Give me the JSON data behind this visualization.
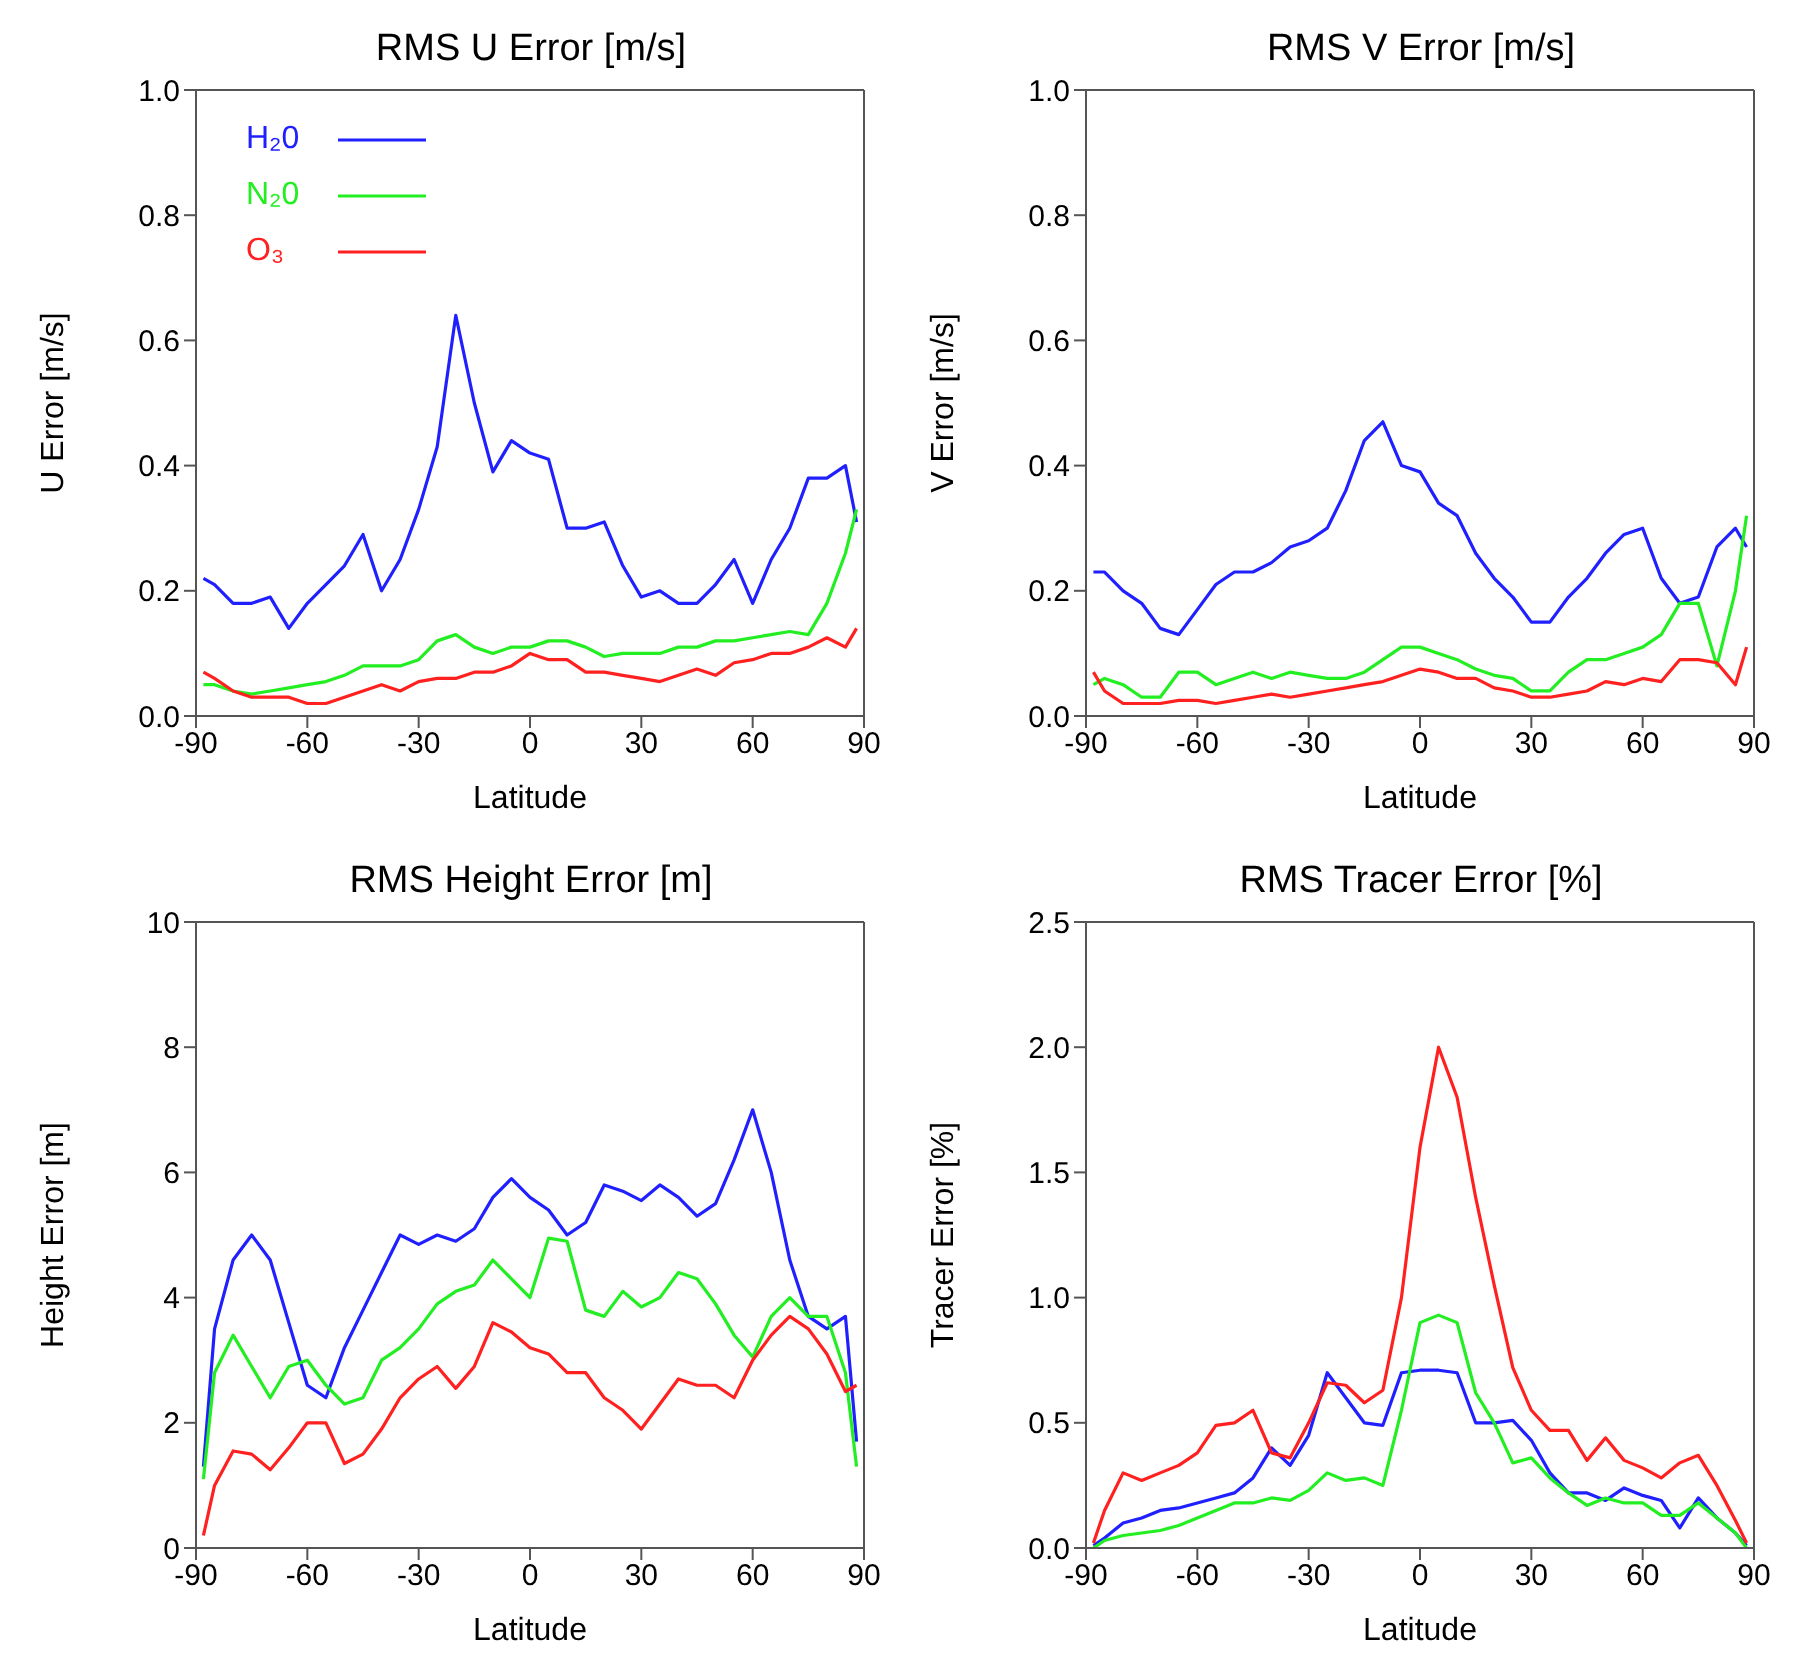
{
  "chart_data": [
    {
      "type": "line",
      "title": "RMS U Error [m/s]",
      "xlabel": "Latitude",
      "ylabel": "U Error [m/s]",
      "x": [
        -88,
        -85,
        -80,
        -75,
        -70,
        -65,
        -60,
        -55,
        -50,
        -45,
        -40,
        -35,
        -30,
        -25,
        -20,
        -15,
        -10,
        -5,
        0,
        5,
        10,
        15,
        20,
        25,
        30,
        35,
        40,
        45,
        50,
        55,
        60,
        65,
        70,
        75,
        80,
        85,
        88
      ],
      "xlim": [
        -90,
        90
      ],
      "xticks": [
        -90,
        -60,
        -30,
        0,
        30,
        60,
        90
      ],
      "ylim": [
        0,
        1
      ],
      "yticks": [
        {
          "value": 0,
          "label": "0.0"
        },
        0.2,
        0.4,
        0.6,
        0.8,
        {
          "value": 1,
          "label": "1.0"
        }
      ],
      "legend": "top left",
      "marker": "none",
      "line_style": "solid",
      "series": [
        {
          "name": "H₂0",
          "color": "#2020ff",
          "values": [
            0.22,
            0.21,
            0.18,
            0.18,
            0.19,
            0.14,
            0.18,
            0.21,
            0.24,
            0.29,
            0.2,
            0.25,
            0.33,
            0.43,
            0.64,
            0.5,
            0.39,
            0.44,
            0.42,
            0.41,
            0.3,
            0.3,
            0.31,
            0.24,
            0.19,
            0.2,
            0.18,
            0.18,
            0.21,
            0.25,
            0.18,
            0.25,
            0.3,
            0.38,
            0.38,
            0.4,
            0.31
          ]
        },
        {
          "name": "N₂0",
          "color": "#22ee22",
          "values": [
            0.05,
            0.05,
            0.04,
            0.035,
            0.04,
            0.045,
            0.05,
            0.055,
            0.065,
            0.08,
            0.08,
            0.08,
            0.09,
            0.12,
            0.13,
            0.11,
            0.1,
            0.11,
            0.11,
            0.12,
            0.12,
            0.11,
            0.095,
            0.1,
            0.1,
            0.1,
            0.11,
            0.11,
            0.12,
            0.12,
            0.125,
            0.13,
            0.135,
            0.13,
            0.18,
            0.26,
            0.33
          ]
        },
        {
          "name": "O₃",
          "color": "#ff2020",
          "values": [
            0.07,
            0.06,
            0.04,
            0.03,
            0.03,
            0.03,
            0.02,
            0.02,
            0.03,
            0.04,
            0.05,
            0.04,
            0.055,
            0.06,
            0.06,
            0.07,
            0.07,
            0.08,
            0.1,
            0.09,
            0.09,
            0.07,
            0.07,
            0.065,
            0.06,
            0.055,
            0.065,
            0.075,
            0.065,
            0.085,
            0.09,
            0.1,
            0.1,
            0.11,
            0.125,
            0.11,
            0.14
          ]
        }
      ]
    },
    {
      "type": "line",
      "title": "RMS V Error [m/s]",
      "xlabel": "Latitude",
      "ylabel": "V Error [m/s]",
      "x": [
        -88,
        -85,
        -80,
        -75,
        -70,
        -65,
        -60,
        -55,
        -50,
        -45,
        -40,
        -35,
        -30,
        -25,
        -20,
        -15,
        -10,
        -5,
        0,
        5,
        10,
        15,
        20,
        25,
        30,
        35,
        40,
        45,
        50,
        55,
        60,
        65,
        70,
        75,
        80,
        85,
        88
      ],
      "xlim": [
        -90,
        90
      ],
      "xticks": [
        -90,
        -60,
        -30,
        0,
        30,
        60,
        90
      ],
      "ylim": [
        0,
        1
      ],
      "yticks": [
        {
          "value": 0,
          "label": "0.0"
        },
        0.2,
        0.4,
        0.6,
        0.8,
        {
          "value": 1,
          "label": "1.0"
        }
      ],
      "marker": "none",
      "line_style": "solid",
      "series": [
        {
          "color": "#2020ff",
          "values": [
            0.23,
            0.23,
            0.2,
            0.18,
            0.14,
            0.13,
            0.17,
            0.21,
            0.23,
            0.23,
            0.245,
            0.27,
            0.28,
            0.3,
            0.36,
            0.44,
            0.47,
            0.4,
            0.39,
            0.34,
            0.32,
            0.26,
            0.22,
            0.19,
            0.15,
            0.15,
            0.19,
            0.22,
            0.26,
            0.29,
            0.3,
            0.22,
            0.18,
            0.19,
            0.27,
            0.3,
            0.27
          ]
        },
        {
          "color": "#22ee22",
          "values": [
            0.05,
            0.06,
            0.05,
            0.03,
            0.03,
            0.07,
            0.07,
            0.05,
            0.06,
            0.07,
            0.06,
            0.07,
            0.065,
            0.06,
            0.06,
            0.07,
            0.09,
            0.11,
            0.11,
            0.1,
            0.09,
            0.075,
            0.065,
            0.06,
            0.04,
            0.04,
            0.07,
            0.09,
            0.09,
            0.1,
            0.11,
            0.13,
            0.18,
            0.18,
            0.08,
            0.2,
            0.32
          ]
        },
        {
          "color": "#ff2020",
          "values": [
            0.07,
            0.04,
            0.02,
            0.02,
            0.02,
            0.025,
            0.025,
            0.02,
            0.025,
            0.03,
            0.035,
            0.03,
            0.035,
            0.04,
            0.045,
            0.05,
            0.055,
            0.065,
            0.075,
            0.07,
            0.06,
            0.06,
            0.045,
            0.04,
            0.03,
            0.03,
            0.035,
            0.04,
            0.055,
            0.05,
            0.06,
            0.055,
            0.09,
            0.09,
            0.085,
            0.05,
            0.11
          ]
        }
      ]
    },
    {
      "type": "line",
      "title": "RMS Height Error [m]",
      "xlabel": "Latitude",
      "ylabel": "Height Error [m]",
      "x": [
        -88,
        -85,
        -80,
        -75,
        -70,
        -65,
        -60,
        -55,
        -50,
        -45,
        -40,
        -35,
        -30,
        -25,
        -20,
        -15,
        -10,
        -5,
        0,
        5,
        10,
        15,
        20,
        25,
        30,
        35,
        40,
        45,
        50,
        55,
        60,
        65,
        70,
        75,
        80,
        85,
        88
      ],
      "xlim": [
        -90,
        90
      ],
      "xticks": [
        -90,
        -60,
        -30,
        0,
        30,
        60,
        90
      ],
      "ylim": [
        0,
        10
      ],
      "yticks": [
        0,
        2,
        4,
        6,
        8,
        10
      ],
      "marker": "none",
      "line_style": "solid",
      "series": [
        {
          "color": "#2020ff",
          "values": [
            1.3,
            3.5,
            4.6,
            5,
            4.6,
            3.6,
            2.6,
            2.4,
            3.2,
            3.8,
            4.4,
            5,
            4.85,
            5,
            4.9,
            5.1,
            5.6,
            5.9,
            5.6,
            5.4,
            5,
            5.2,
            5.8,
            5.7,
            5.55,
            5.8,
            5.6,
            5.3,
            5.5,
            6.2,
            7,
            6,
            4.6,
            3.7,
            3.5,
            3.7,
            1.7
          ]
        },
        {
          "color": "#22ee22",
          "values": [
            1.1,
            2.8,
            3.4,
            2.9,
            2.4,
            2.9,
            3,
            2.6,
            2.3,
            2.4,
            3,
            3.2,
            3.5,
            3.9,
            4.1,
            4.2,
            4.6,
            4.3,
            4,
            4.95,
            4.9,
            3.8,
            3.7,
            4.1,
            3.85,
            4,
            4.4,
            4.3,
            3.9,
            3.4,
            3.05,
            3.7,
            4,
            3.7,
            3.7,
            2.8,
            1.3
          ]
        },
        {
          "color": "#ff2020",
          "values": [
            0.2,
            1,
            1.55,
            1.5,
            1.25,
            1.6,
            2,
            2,
            1.35,
            1.5,
            1.9,
            2.4,
            2.7,
            2.9,
            2.55,
            2.9,
            3.6,
            3.45,
            3.2,
            3.1,
            2.8,
            2.8,
            2.4,
            2.2,
            1.9,
            2.3,
            2.7,
            2.6,
            2.6,
            2.4,
            3,
            3.4,
            3.7,
            3.5,
            3.1,
            2.5,
            2.6
          ]
        }
      ]
    },
    {
      "type": "line",
      "title": "RMS Tracer Error [%]",
      "xlabel": "Latitude",
      "ylabel": "Tracer Error [%]",
      "x": [
        -88,
        -85,
        -80,
        -75,
        -70,
        -65,
        -60,
        -55,
        -50,
        -45,
        -40,
        -35,
        -30,
        -25,
        -20,
        -15,
        -10,
        -5,
        0,
        5,
        10,
        15,
        20,
        25,
        30,
        35,
        40,
        45,
        50,
        55,
        60,
        65,
        70,
        75,
        80,
        85,
        88
      ],
      "xlim": [
        -90,
        90
      ],
      "xticks": [
        -90,
        -60,
        -30,
        0,
        30,
        60,
        90
      ],
      "ylim": [
        0,
        2.5
      ],
      "yticks": [
        {
          "value": 0,
          "label": "0.0"
        },
        0.5,
        {
          "value": 1,
          "label": "1.0"
        },
        1.5,
        {
          "value": 2,
          "label": "2.0"
        },
        2.5
      ],
      "marker": "none",
      "line_style": "solid",
      "series": [
        {
          "color": "#2020ff",
          "values": [
            0.01,
            0.04,
            0.1,
            0.12,
            0.15,
            0.16,
            0.18,
            0.2,
            0.22,
            0.28,
            0.4,
            0.33,
            0.45,
            0.7,
            0.6,
            0.5,
            0.49,
            0.7,
            0.71,
            0.71,
            0.7,
            0.5,
            0.5,
            0.51,
            0.43,
            0.3,
            0.22,
            0.22,
            0.19,
            0.24,
            0.21,
            0.19,
            0.08,
            0.2,
            0.12,
            0.06,
            0.01
          ]
        },
        {
          "color": "#22ee22",
          "values": [
            0,
            0.03,
            0.05,
            0.06,
            0.07,
            0.09,
            0.12,
            0.15,
            0.18,
            0.18,
            0.2,
            0.19,
            0.23,
            0.3,
            0.27,
            0.28,
            0.25,
            0.55,
            0.9,
            0.93,
            0.9,
            0.62,
            0.5,
            0.34,
            0.36,
            0.28,
            0.22,
            0.17,
            0.2,
            0.18,
            0.18,
            0.13,
            0.13,
            0.18,
            0.12,
            0.06,
            0
          ]
        },
        {
          "color": "#ff2020",
          "values": [
            0.02,
            0.15,
            0.3,
            0.27,
            0.3,
            0.33,
            0.38,
            0.49,
            0.5,
            0.55,
            0.38,
            0.36,
            0.5,
            0.66,
            0.65,
            0.58,
            0.63,
            1,
            1.6,
            2,
            1.8,
            1.4,
            1.05,
            0.72,
            0.55,
            0.47,
            0.47,
            0.35,
            0.44,
            0.35,
            0.32,
            0.28,
            0.34,
            0.37,
            0.25,
            0.11,
            0.02
          ]
        }
      ]
    }
  ]
}
